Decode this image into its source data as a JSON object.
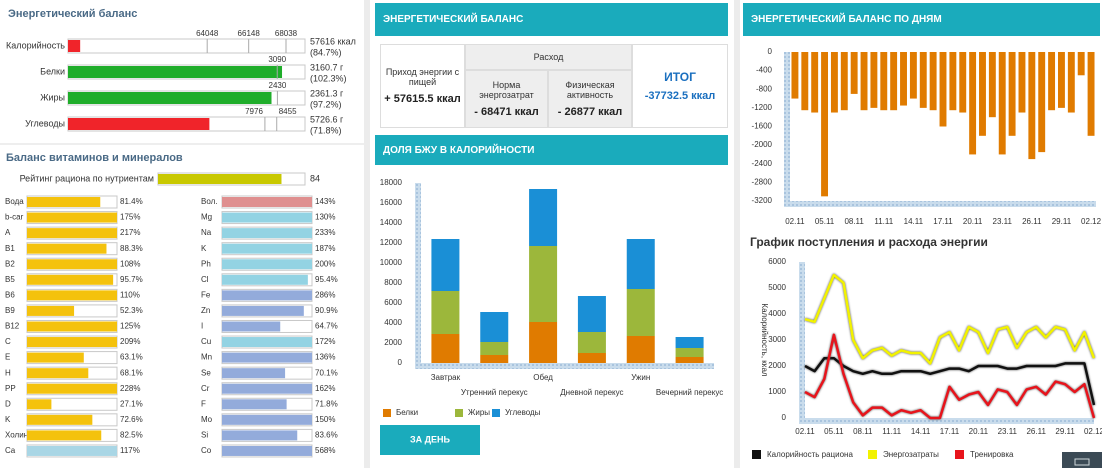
{
  "energy": {
    "title": "Энергетический баланс",
    "rows": [
      {
        "label": "Калорийность",
        "value": 57616,
        "value_text": "57616 ккал",
        "percent_text": "(84.7%)",
        "color": "#f0242a",
        "xlim": [
          57000,
          69000
        ],
        "markers": [
          64048,
          66148,
          68038
        ]
      },
      {
        "label": "Белки",
        "value": 3160.7,
        "value_text": "3160.7 г",
        "percent_text": "(102.3%)",
        "color": "#1fad2a",
        "xlim": [
          0,
          3500
        ],
        "markers": [
          3090
        ]
      },
      {
        "label": "Жиры",
        "value": 2361.3,
        "value_text": "2361.3 г",
        "percent_text": "(97.2%)",
        "color": "#1fad2a",
        "xlim": [
          0,
          2750
        ],
        "markers": [
          2430
        ]
      },
      {
        "label": "Углеводы",
        "value": 5726.6,
        "value_text": "5726.6 г",
        "percent_text": "(71.8%)",
        "color": "#f0242a",
        "xlim": [
          0,
          9600
        ],
        "markers": [
          7976,
          8455
        ]
      }
    ]
  },
  "vitamins": {
    "title": "Баланс витаминов и минералов",
    "rating": {
      "label": "Рейтинг рациона по нутриентам",
      "value": 84,
      "color": "#c8c800"
    },
    "xlim": [
      0,
      100
    ],
    "columns": [
      [
        {
          "name": "Вода",
          "value": 81.4,
          "label": "81.4%",
          "color": "#f4c20d"
        },
        {
          "name": "b-car",
          "value": 175,
          "label": "175%",
          "color": "#f4c20d"
        },
        {
          "name": "A",
          "value": 217,
          "label": "217%",
          "color": "#f4c20d"
        },
        {
          "name": "B1",
          "value": 88.3,
          "label": "88.3%",
          "color": "#f4c20d"
        },
        {
          "name": "B2",
          "value": 108,
          "label": "108%",
          "color": "#f4c20d"
        },
        {
          "name": "B5",
          "value": 95.7,
          "label": "95.7%",
          "color": "#f4c20d"
        },
        {
          "name": "B6",
          "value": 110,
          "label": "110%",
          "color": "#f4c20d"
        },
        {
          "name": "B9",
          "value": 52.3,
          "label": "52.3%",
          "color": "#f4c20d"
        },
        {
          "name": "B12",
          "value": 125,
          "label": "125%",
          "color": "#f4c20d"
        },
        {
          "name": "C",
          "value": 209,
          "label": "209%",
          "color": "#f4c20d"
        },
        {
          "name": "E",
          "value": 63.1,
          "label": "63.1%",
          "color": "#f4c20d"
        },
        {
          "name": "H",
          "value": 68.1,
          "label": "68.1%",
          "color": "#f4c20d"
        },
        {
          "name": "PP",
          "value": 228,
          "label": "228%",
          "color": "#f4c20d"
        },
        {
          "name": "D",
          "value": 27.1,
          "label": "27.1%",
          "color": "#f4c20d"
        },
        {
          "name": "K",
          "value": 72.6,
          "label": "72.6%",
          "color": "#f4c20d"
        },
        {
          "name": "Холин",
          "value": 82.5,
          "label": "82.5%",
          "color": "#f4c20d"
        },
        {
          "name": "Ca",
          "value": 117,
          "label": "117%",
          "color": "#a9d6e5"
        }
      ],
      [
        {
          "name": "Вол.",
          "value": 143,
          "label": "143%",
          "color": "#df8f8f"
        },
        {
          "name": "Mg",
          "value": 130,
          "label": "130%",
          "color": "#93d3e3"
        },
        {
          "name": "Na",
          "value": 233,
          "label": "233%",
          "color": "#93d3e3"
        },
        {
          "name": "K",
          "value": 187,
          "label": "187%",
          "color": "#93d3e3"
        },
        {
          "name": "Ph",
          "value": 200,
          "label": "200%",
          "color": "#93d3e3"
        },
        {
          "name": "Cl",
          "value": 95.4,
          "label": "95.4%",
          "color": "#93d3e3"
        },
        {
          "name": "Fe",
          "value": 286,
          "label": "286%",
          "color": "#93abdb"
        },
        {
          "name": "Zn",
          "value": 90.9,
          "label": "90.9%",
          "color": "#93abdb"
        },
        {
          "name": "I",
          "value": 64.7,
          "label": "64.7%",
          "color": "#93abdb"
        },
        {
          "name": "Cu",
          "value": 172,
          "label": "172%",
          "color": "#93d3e3"
        },
        {
          "name": "Mn",
          "value": 136,
          "label": "136%",
          "color": "#93abdb"
        },
        {
          "name": "Se",
          "value": 70.1,
          "label": "70.1%",
          "color": "#93abdb"
        },
        {
          "name": "Cr",
          "value": 162,
          "label": "162%",
          "color": "#93abdb"
        },
        {
          "name": "F",
          "value": 71.8,
          "label": "71.8%",
          "color": "#93abdb"
        },
        {
          "name": "Mo",
          "value": 150,
          "label": "150%",
          "color": "#93abdb"
        },
        {
          "name": "Si",
          "value": 83.6,
          "label": "83.6%",
          "color": "#93abdb"
        },
        {
          "name": "Co",
          "value": 568,
          "label": "568%",
          "color": "#93abdb"
        }
      ]
    ]
  },
  "summary": {
    "title": "ЭНЕРГЕТИЧЕСКИЙ БАЛАНС",
    "income_label": "Приход энергии с пищей",
    "income": "+ 57615.5 ккал",
    "expense_label": "Расход",
    "norm_label": "Норма энергозатрат",
    "norm": "- 68471 ккал",
    "activity_label": "Физическая активность",
    "activity": "- 26877 ккал",
    "total_label": "ИТОГ",
    "total": "-37732.5 ккал"
  },
  "button": "ЗА ДЕНЬ",
  "chart_data": [
    {
      "type": "stacked_bar",
      "title": "ДОЛЯ БЖУ В КАЛОРИЙНОСТИ",
      "categories": [
        "Завтрак",
        "Утренний перекус",
        "Обед",
        "Дневной перекус",
        "Ужин",
        "Вечерний перекус"
      ],
      "series": [
        {
          "name": "Белки",
          "color": "#e07b00",
          "values": [
            2900,
            800,
            4100,
            1000,
            2700,
            600
          ]
        },
        {
          "name": "Жиры",
          "color": "#9cb73b",
          "values": [
            4300,
            1300,
            7600,
            2100,
            4700,
            900
          ]
        },
        {
          "name": "Углеводы",
          "color": "#1a8fd6",
          "values": [
            5200,
            3000,
            5700,
            3600,
            5000,
            1100
          ]
        }
      ],
      "ylim": [
        0,
        18000
      ],
      "yticks": [
        0,
        2000,
        4000,
        6000,
        8000,
        10000,
        12000,
        14000,
        16000,
        18000
      ]
    },
    {
      "type": "bar",
      "title": "ЭНЕРГЕТИЧЕСКИЙ БАЛАНС ПО ДНЯМ",
      "color": "#e07b00",
      "categories": [
        "02.11",
        null,
        null,
        "05.11",
        null,
        null,
        "08.11",
        null,
        null,
        "11.11",
        null,
        null,
        "14.11",
        null,
        null,
        "17.11",
        null,
        null,
        "20.11",
        null,
        null,
        "23.11",
        null,
        null,
        "26.11",
        null,
        null,
        "29.11",
        null,
        null,
        "02.12"
      ],
      "values": [
        -1000,
        -1250,
        -1300,
        -3100,
        -1300,
        -1250,
        -900,
        -1250,
        -1200,
        -1250,
        -1250,
        -1150,
        -1000,
        -1200,
        -1250,
        -1600,
        -1250,
        -1300,
        -2200,
        -1800,
        -1400,
        -2200,
        -1800,
        -1300,
        -2300,
        -2150,
        -1250,
        -1200,
        -1300,
        -500,
        -1800
      ],
      "ylim": [
        -3200,
        0
      ],
      "yticks": [
        0,
        -400,
        -800,
        -1200,
        -1600,
        -2000,
        -2400,
        -2800,
        -3200
      ]
    },
    {
      "type": "line",
      "title": "График поступления и расхода энергии",
      "y_label": "Калорийность, ккал",
      "categories": [
        "02.11",
        null,
        null,
        "05.11",
        null,
        null,
        "08.11",
        null,
        null,
        "11.11",
        null,
        null,
        "14.11",
        null,
        null,
        "17.11",
        null,
        null,
        "20.11",
        null,
        null,
        "23.11",
        null,
        null,
        "26.11",
        null,
        null,
        "29.11",
        null,
        null,
        "02.12"
      ],
      "series": [
        {
          "name": "Калорийность рациона",
          "color": "#111111",
          "values": [
            2000,
            1800,
            2300,
            2300,
            2000,
            1800,
            1700,
            1800,
            1700,
            1700,
            1800,
            1800,
            1800,
            1700,
            1800,
            1900,
            1900,
            1800,
            2000,
            2000,
            2000,
            1900,
            1900,
            2000,
            2000,
            2000,
            2000,
            2100,
            2100,
            2100,
            500
          ]
        },
        {
          "name": "Энергозатраты",
          "color": "#f2f200",
          "values": [
            3800,
            3700,
            4600,
            5500,
            5200,
            3000,
            2300,
            2600,
            2700,
            2400,
            2600,
            2500,
            2500,
            2100,
            3100,
            3300,
            2600,
            3500,
            3300,
            2500,
            3400,
            3500,
            2700,
            3300,
            3500,
            3100,
            3500,
            3400,
            2600,
            3300,
            2300
          ]
        },
        {
          "name": "Тренировка",
          "color": "#e8141c",
          "values": [
            1000,
            800,
            1500,
            3200,
            1700,
            600,
            100,
            400,
            400,
            100,
            300,
            200,
            300,
            0,
            0,
            1200,
            700,
            900,
            1000,
            500,
            1100,
            1000,
            500,
            1100,
            1200,
            900,
            1400,
            1300,
            1000,
            1300,
            0
          ]
        }
      ],
      "ylim": [
        0,
        6000
      ],
      "yticks": [
        0,
        1000,
        2000,
        3000,
        4000,
        5000,
        6000
      ]
    }
  ]
}
